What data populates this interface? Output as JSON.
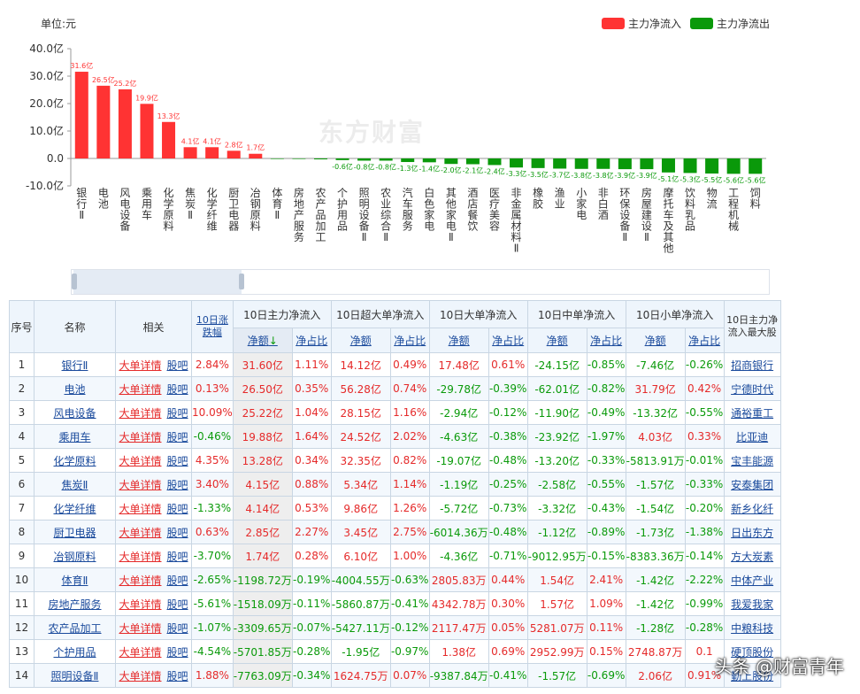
{
  "chart_data": {
    "type": "bar",
    "unit_label": "单位:元",
    "legend": [
      {
        "name": "主力净流入",
        "color": "#ff3333"
      },
      {
        "name": "主力净流出",
        "color": "#0a990a"
      }
    ],
    "y_ticks": [
      "40.0亿",
      "30.0亿",
      "20.0亿",
      "10.0亿",
      "0.0",
      "-10.0亿"
    ],
    "ylim": [
      -10,
      40
    ],
    "categories": [
      "银行Ⅱ",
      "电池",
      "风电设备",
      "乘用车",
      "化学原料",
      "焦炭Ⅱ",
      "化学纤维",
      "厨卫电器",
      "冶钢原料",
      "体育Ⅱ",
      "房地产服务",
      "农产品加工",
      "个护用品",
      "照明设备Ⅱ",
      "农业综合Ⅱ",
      "汽车服务",
      "白色家电",
      "其他家电Ⅱ",
      "酒店餐饮",
      "医疗美容",
      "非金属材料Ⅱ",
      "橡胶",
      "渔业",
      "小家电",
      "非白酒",
      "环保设备Ⅱ",
      "房屋建设Ⅱ",
      "摩托车及其他",
      "饮料乳品",
      "物流",
      "工程机械",
      "饲料"
    ],
    "values": [
      31.6,
      26.5,
      25.2,
      19.9,
      13.3,
      4.1,
      4.1,
      2.8,
      1.7,
      -0.12,
      -0.15,
      -0.33,
      -0.6,
      -0.8,
      -0.8,
      -1.3,
      -1.4,
      -2.0,
      -2.1,
      -2.4,
      -3.3,
      -3.5,
      -3.7,
      -3.8,
      -3.8,
      -3.9,
      -3.9,
      -5.1,
      -5.3,
      -5.5,
      -5.6,
      -5.6
    ],
    "data_labels": [
      "31.6亿",
      "26.5亿",
      "25.2亿",
      "19.9亿",
      "13.3亿",
      "4.1亿",
      "4.1亿",
      "2.8亿",
      "1.7亿",
      "",
      "",
      "",
      "-0.6亿",
      "-0.8亿",
      "-0.8亿",
      "-1.3亿",
      "-1.4亿",
      "-2.0亿",
      "-2.1亿",
      "-2.4亿",
      "-3.3亿",
      "-3.5亿",
      "-3.7亿",
      "-3.8亿",
      "-3.8亿",
      "-3.9亿",
      "-3.9亿",
      "-5.1亿",
      "-5.3亿",
      "-5.5亿",
      "-5.6亿",
      "-5.6亿"
    ],
    "watermark": "东方财富"
  },
  "table": {
    "headers": {
      "seq": "序号",
      "name": "名称",
      "related": "相关",
      "chg": "10日涨跌幅",
      "main": "10日主力净流入",
      "super": "10日超大单净流入",
      "big": "10日大单净流入",
      "mid": "10日中单净流入",
      "small": "10日小单净流入",
      "top": "10日主力净流入最大股",
      "amt": "净额",
      "pct": "净占比",
      "sort_icon": "↓"
    },
    "link_detail": "大单详情",
    "link_bar": "股吧",
    "rows": [
      [
        "1",
        "银行Ⅱ",
        "2.84%",
        "31.60亿",
        "1.11%",
        "14.12亿",
        "0.49%",
        "17.48亿",
        "0.61%",
        "-24.15亿",
        "-0.85%",
        "-7.46亿",
        "-0.26%",
        "招商银行"
      ],
      [
        "2",
        "电池",
        "0.13%",
        "26.50亿",
        "0.35%",
        "56.28亿",
        "0.74%",
        "-29.78亿",
        "-0.39%",
        "-62.01亿",
        "-0.82%",
        "31.79亿",
        "0.42%",
        "宁德时代"
      ],
      [
        "3",
        "风电设备",
        "10.09%",
        "25.22亿",
        "1.04%",
        "28.15亿",
        "1.16%",
        "-2.94亿",
        "-0.12%",
        "-11.90亿",
        "-0.49%",
        "-13.32亿",
        "-0.55%",
        "通裕重工"
      ],
      [
        "4",
        "乘用车",
        "-0.46%",
        "19.88亿",
        "1.64%",
        "24.52亿",
        "2.02%",
        "-4.63亿",
        "-0.38%",
        "-23.92亿",
        "-1.97%",
        "4.03亿",
        "0.33%",
        "比亚迪"
      ],
      [
        "5",
        "化学原料",
        "4.35%",
        "13.28亿",
        "0.34%",
        "32.35亿",
        "0.82%",
        "-19.07亿",
        "-0.48%",
        "-13.20亿",
        "-0.33%",
        "-5813.91万",
        "-0.01%",
        "宝丰能源"
      ],
      [
        "6",
        "焦炭Ⅱ",
        "3.40%",
        "4.15亿",
        "0.88%",
        "5.34亿",
        "1.14%",
        "-1.19亿",
        "-0.25%",
        "-2.58亿",
        "-0.55%",
        "-1.57亿",
        "-0.33%",
        "安泰集团"
      ],
      [
        "7",
        "化学纤维",
        "-1.33%",
        "4.14亿",
        "0.53%",
        "9.86亿",
        "1.26%",
        "-5.72亿",
        "-0.73%",
        "-3.32亿",
        "-0.43%",
        "-1.54亿",
        "-0.20%",
        "新乡化纤"
      ],
      [
        "8",
        "厨卫电器",
        "0.63%",
        "2.85亿",
        "2.27%",
        "3.45亿",
        "2.75%",
        "-6014.36万",
        "-0.48%",
        "-1.12亿",
        "-0.89%",
        "-1.73亿",
        "-1.38%",
        "日出东方"
      ],
      [
        "9",
        "冶钢原料",
        "-3.70%",
        "1.74亿",
        "0.28%",
        "6.10亿",
        "1.00%",
        "-4.36亿",
        "-0.71%",
        "-9012.95万",
        "-0.15%",
        "-8383.36万",
        "-0.14%",
        "方大炭素"
      ],
      [
        "10",
        "体育Ⅱ",
        "-2.65%",
        "-1198.72万",
        "-0.19%",
        "-4004.55万",
        "-0.63%",
        "2805.83万",
        "0.44%",
        "1.54亿",
        "2.41%",
        "-1.42亿",
        "-2.22%",
        "中体产业"
      ],
      [
        "11",
        "房地产服务",
        "-5.61%",
        "-1518.09万",
        "-0.11%",
        "-5860.87万",
        "-0.41%",
        "4342.78万",
        "0.30%",
        "1.57亿",
        "1.09%",
        "-1.42亿",
        "-0.99%",
        "我爱我家"
      ],
      [
        "12",
        "农产品加工",
        "-1.07%",
        "-3309.65万",
        "-0.07%",
        "-5427.11万",
        "-0.12%",
        "2117.47万",
        "0.05%",
        "5281.07万",
        "0.11%",
        "-1.28亿",
        "-0.28%",
        "中粮科技"
      ],
      [
        "13",
        "个护用品",
        "-4.54%",
        "-5701.85万",
        "-0.28%",
        "-1.95亿",
        "-0.97%",
        "1.38亿",
        "0.69%",
        "2952.99万",
        "0.15%",
        "2748.87万",
        "0.1",
        "硬顶股份"
      ],
      [
        "14",
        "照明设备Ⅱ",
        "1.88%",
        "-7763.09万",
        "-0.34%",
        "1624.75万",
        "0.07%",
        "-9387.84万",
        "-0.41%",
        "-1.57亿",
        "-0.69%",
        "2.06亿",
        "0.91%",
        "勤上股份"
      ]
    ]
  },
  "footer_watermark": "头条 @财富青年"
}
